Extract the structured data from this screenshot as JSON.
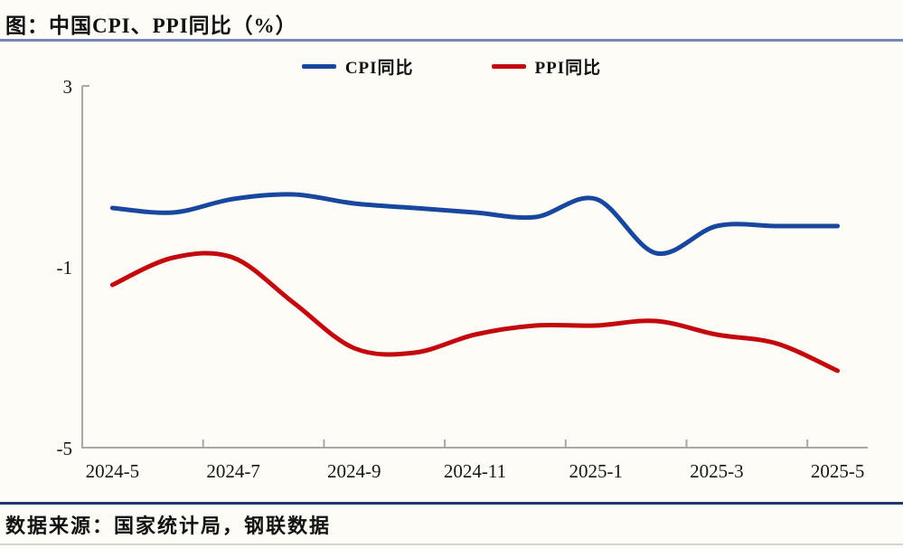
{
  "title": "图：中国CPI、PPI同比（%）",
  "source": "数据来源：国家统计局，钢联数据",
  "colors": {
    "background": "#fdfcf6",
    "title_rule": "#7489ba",
    "footer_rule": "#1e3a6e",
    "axis": "#a8a8a8",
    "cpi_line": "#17479e",
    "ppi_line": "#c3090e",
    "text": "#111111"
  },
  "chart_data": {
    "type": "line",
    "smooth": true,
    "grid": false,
    "legend_position": "top",
    "title": "图：中国CPI、PPI同比（%）",
    "xlabel": "",
    "ylabel": "",
    "ylim": [
      -5,
      3
    ],
    "y_ticks": [
      "3",
      "-1",
      "-5"
    ],
    "y_tick_values": [
      3,
      -1,
      -5
    ],
    "categories": [
      "2024-5",
      "2024-6",
      "2024-7",
      "2024-8",
      "2024-9",
      "2024-10",
      "2024-11",
      "2024-12",
      "2025-1",
      "2025-2",
      "2025-3",
      "2025-4",
      "2025-5"
    ],
    "x_tick_labels": [
      "2024-5",
      "2024-7",
      "2024-9",
      "2024-11",
      "2025-1",
      "2025-3",
      "2025-5"
    ],
    "series": [
      {
        "name": "CPI同比",
        "color": "#17479e",
        "values": [
          0.3,
          0.2,
          0.5,
          0.6,
          0.4,
          0.3,
          0.2,
          0.1,
          0.5,
          -0.7,
          -0.1,
          -0.1,
          -0.1
        ]
      },
      {
        "name": "PPI同比",
        "color": "#c3090e",
        "values": [
          -1.4,
          -0.8,
          -0.8,
          -1.8,
          -2.8,
          -2.9,
          -2.5,
          -2.3,
          -2.3,
          -2.2,
          -2.5,
          -2.7,
          -3.3
        ]
      }
    ]
  }
}
